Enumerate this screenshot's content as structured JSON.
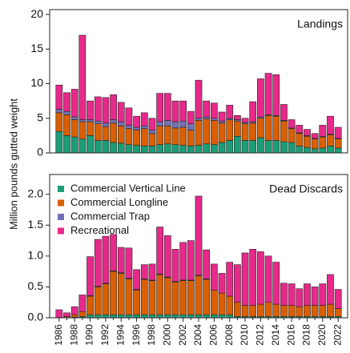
{
  "y_label": "Million pounds gutted weight",
  "chart_data": [
    {
      "type": "stacked-bar",
      "title": "Landings",
      "ylim": [
        0,
        20.7
      ],
      "yticks": [
        0,
        5,
        10,
        15,
        20
      ],
      "series": [
        {
          "name": "Commercial Vertical Line",
          "color": "#1b9e77",
          "values": [
            3.1,
            2.5,
            2.3,
            2.0,
            2.5,
            1.8,
            1.8,
            1.5,
            1.4,
            1.2,
            1.1,
            1.0,
            1.0,
            1.2,
            1.3,
            1.2,
            1.1,
            1.0,
            1.1,
            1.3,
            1.2,
            1.5,
            1.8,
            2.4,
            1.8,
            1.8,
            2.2,
            1.8,
            1.8,
            1.6,
            1.5,
            1.0,
            0.8,
            0.6,
            0.7,
            1.0,
            0.7
          ]
        },
        {
          "name": "Commercial Longline",
          "color": "#d95f02",
          "values": [
            2.7,
            3.0,
            2.5,
            2.5,
            2.0,
            2.4,
            2.0,
            2.8,
            2.5,
            2.3,
            2.2,
            2.5,
            1.8,
            2.7,
            2.6,
            2.4,
            2.6,
            2.3,
            3.6,
            3.6,
            3.5,
            2.8,
            3.0,
            2.2,
            2.4,
            2.5,
            2.8,
            3.6,
            3.5,
            3.0,
            2.0,
            1.8,
            1.6,
            1.4,
            1.6,
            1.6,
            1.3
          ]
        },
        {
          "name": "Commercial Trap",
          "color": "#7570b3",
          "values": [
            0.5,
            0.5,
            0.4,
            0.3,
            0.3,
            0.4,
            0.5,
            0.5,
            0.6,
            0.5,
            0.4,
            0.4,
            0.5,
            0.6,
            0.8,
            0.9,
            0.9,
            0.9,
            0.3,
            0.3,
            0.3,
            0.3,
            0.2,
            0.2,
            0.2,
            0.2,
            0.2,
            0.1,
            0.1,
            0.1,
            0.1,
            0.1,
            0.1,
            0.1,
            0.1,
            0.1,
            0.1
          ]
        },
        {
          "name": "Recreational",
          "color": "#e7298a",
          "values": [
            3.5,
            2.7,
            4.0,
            12.2,
            2.7,
            3.5,
            3.7,
            3.6,
            2.8,
            2.5,
            1.6,
            1.9,
            1.7,
            4.1,
            3.9,
            3.0,
            2.9,
            1.8,
            5.5,
            2.3,
            2.2,
            1.3,
            1.9,
            0.6,
            0.6,
            2.9,
            5.5,
            6.0,
            5.9,
            2.3,
            1.2,
            1.1,
            0.9,
            0.7,
            1.6,
            2.6,
            1.6
          ]
        }
      ]
    },
    {
      "type": "stacked-bar",
      "title": "Dead Discards",
      "ylim": [
        0,
        2.32
      ],
      "yticks": [
        {
          "value": 0,
          "label": "0.0"
        },
        0.5,
        {
          "value": 1,
          "label": "1.0"
        },
        1.5,
        {
          "value": 2,
          "label": "2.0"
        }
      ],
      "legend": "upper left",
      "categories": [
        "1986",
        null,
        "1988",
        null,
        "1990",
        null,
        "1992",
        null,
        "1994",
        null,
        "1996",
        null,
        "1998",
        null,
        "2000",
        null,
        "2002",
        null,
        "2004",
        null,
        "2006",
        null,
        "2008",
        null,
        "2010",
        null,
        "2012",
        null,
        "2014",
        null,
        "2016",
        null,
        "2018",
        null,
        "2020",
        null,
        "2022"
      ],
      "series": [
        {
          "name": "Commercial Vertical Line",
          "color": "#1b9e77",
          "values": [
            0,
            0,
            0.01,
            0.02,
            0.05,
            0.05,
            0.05,
            0.05,
            0.05,
            0.05,
            0.05,
            0.05,
            0.05,
            0.05,
            0.05,
            0.05,
            0.05,
            0.05,
            0.05,
            0.05,
            0.05,
            0.05,
            0.05,
            0.02,
            0.02,
            0.02,
            0.02,
            0.02,
            0.02,
            0.02,
            0.02,
            0.02,
            0.02,
            0.02,
            0.02,
            0.02,
            0.02
          ]
        },
        {
          "name": "Commercial Longline",
          "color": "#d95f02",
          "values": [
            0,
            0.02,
            0.04,
            0.08,
            0.3,
            0.45,
            0.5,
            0.7,
            0.67,
            0.58,
            0.4,
            0.57,
            0.55,
            0.65,
            0.6,
            0.53,
            0.55,
            0.55,
            0.63,
            0.57,
            0.4,
            0.35,
            0.3,
            0.23,
            0.18,
            0.18,
            0.2,
            0.23,
            0.2,
            0.18,
            0.18,
            0.16,
            0.18,
            0.18,
            0.18,
            0.2,
            0.13
          ]
        },
        {
          "name": "Commercial Trap",
          "color": "#7570b3",
          "values": [
            0,
            0,
            0,
            0,
            0.01,
            0.01,
            0.01,
            0.01,
            0.01,
            0.01,
            0.01,
            0.01,
            0.01,
            0.01,
            0.01,
            0.01,
            0.01,
            0.01,
            0.01,
            0.01,
            0,
            0,
            0,
            0,
            0,
            0,
            0,
            0,
            0,
            0,
            0,
            0,
            0,
            0,
            0,
            0,
            0
          ]
        },
        {
          "name": "Recreational",
          "color": "#e7298a",
          "values": [
            0.13,
            0.06,
            0.13,
            0.27,
            0.63,
            0.76,
            0.76,
            0.59,
            0.41,
            0.49,
            0.32,
            0.23,
            0.26,
            0.76,
            0.67,
            0.52,
            0.61,
            0.64,
            1.28,
            0.47,
            0.42,
            0.32,
            0.55,
            0.61,
            0.85,
            0.91,
            0.85,
            0.75,
            0.68,
            0.36,
            0.35,
            0.29,
            0.35,
            0.3,
            0.35,
            0.48,
            0.31
          ]
        }
      ]
    }
  ]
}
